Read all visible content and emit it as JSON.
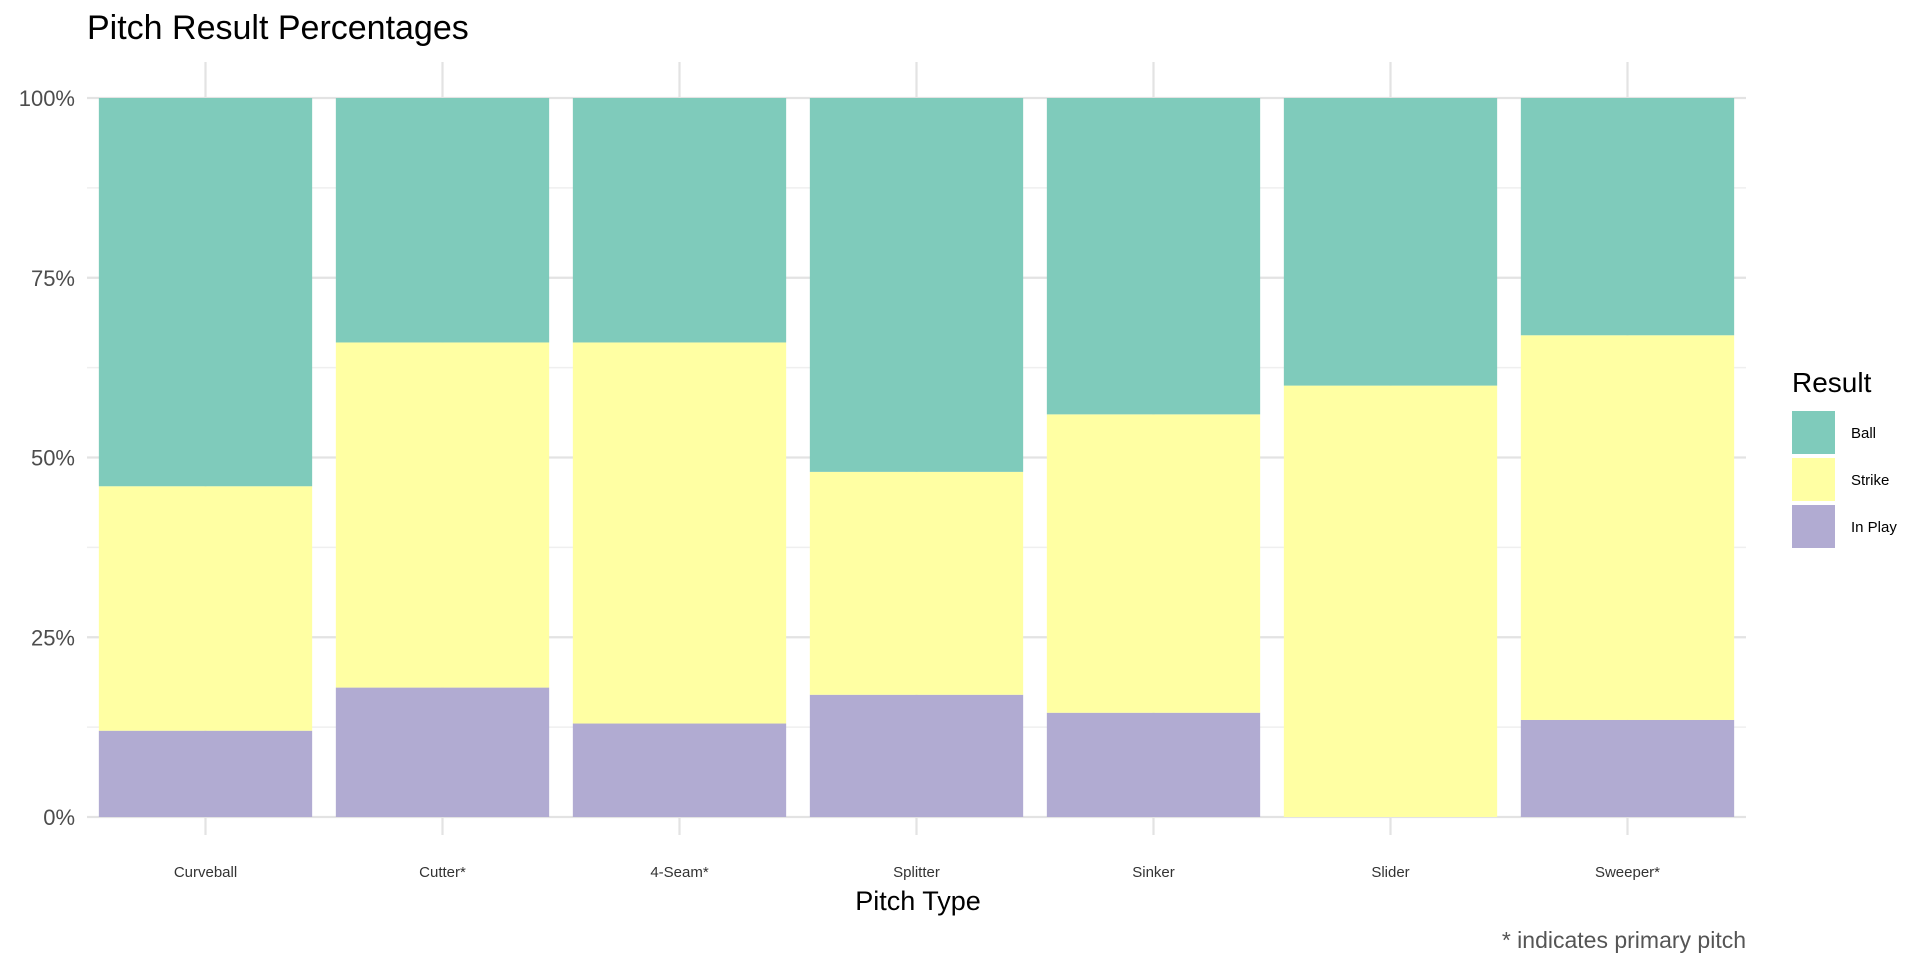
{
  "chart_data": {
    "type": "bar",
    "stacked": true,
    "normalized": true,
    "title": "Pitch Result Percentages",
    "xlabel": "Pitch Type",
    "ylabel": "",
    "ylim": [
      0,
      1
    ],
    "y_ticks": [
      0,
      0.25,
      0.5,
      0.75,
      1
    ],
    "y_tick_labels": [
      "0%",
      "25%",
      "50%",
      "75%",
      "100%"
    ],
    "grid": true,
    "legend_position": "right",
    "legend_title": "Result",
    "caption": "* indicates primary pitch",
    "categories": [
      "Curveball",
      "Cutter*",
      "4-Seam*",
      "Splitter",
      "Sinker",
      "Slider",
      "Sweeper*"
    ],
    "series": [
      {
        "name": "Ball",
        "color": "#7FCBBB",
        "values": [
          0.54,
          0.34,
          0.34,
          0.52,
          0.44,
          0.4,
          0.33
        ]
      },
      {
        "name": "Strike",
        "color": "#FFFFA3",
        "values": [
          0.34,
          0.48,
          0.53,
          0.31,
          0.415,
          0.6,
          0.535
        ]
      },
      {
        "name": "In Play",
        "color": "#B1ABD2",
        "values": [
          0.12,
          0.18,
          0.13,
          0.17,
          0.145,
          0.0,
          0.135
        ]
      }
    ]
  }
}
